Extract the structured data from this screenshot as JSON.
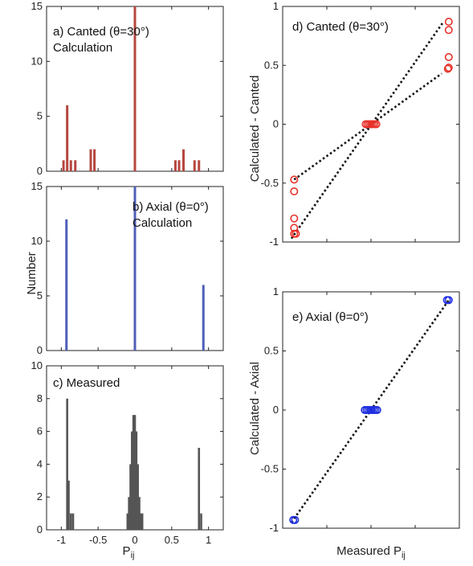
{
  "figure": {
    "y_label_left": "Number",
    "x_label_left": "P",
    "x_label_left_sub": "ij",
    "y_label_right_top": "Calculated - Canted",
    "y_label_right_bottom": "Calculated - Axial",
    "x_label_right": "Measured P",
    "x_label_right_sub": "ij"
  },
  "chart_data": [
    {
      "id": "a",
      "type": "bar",
      "annotation_lines": [
        "a) Canted (θ=30°)",
        "Calculation"
      ],
      "xlim": [
        -1.2,
        1.2
      ],
      "ylim": [
        0,
        15
      ],
      "xticks": [
        -1,
        -0.5,
        0,
        0.5,
        1
      ],
      "yticks": [
        0,
        5,
        10,
        15
      ],
      "show_xtick_labels": false,
      "bar_color": "#b5473f",
      "x": [
        -0.97,
        -0.92,
        -0.87,
        -0.81,
        -0.6,
        -0.55,
        0.0,
        0.55,
        0.6,
        0.66,
        0.81,
        0.87
      ],
      "values": [
        1,
        6,
        1,
        1,
        2,
        2,
        15,
        1,
        1,
        2,
        1,
        1
      ]
    },
    {
      "id": "b",
      "type": "bar",
      "annotation_lines": [
        "b) Axial (θ=0°)",
        "Calculation"
      ],
      "xlim": [
        -1.2,
        1.2
      ],
      "ylim": [
        0,
        15
      ],
      "xticks": [
        -1,
        -0.5,
        0,
        0.5,
        1
      ],
      "yticks": [
        0,
        5,
        10,
        15
      ],
      "show_xtick_labels": false,
      "bar_color": "#4f5fb8",
      "x": [
        -0.93,
        0.0,
        0.93
      ],
      "values": [
        12,
        15,
        6
      ]
    },
    {
      "id": "c",
      "type": "bar",
      "annotation_lines": [
        "c) Measured"
      ],
      "xlim": [
        -1.2,
        1.2
      ],
      "ylim": [
        0,
        10
      ],
      "xticks": [
        -1,
        -0.5,
        0,
        0.5,
        1
      ],
      "xtick_labels": [
        "-1",
        "-0.5",
        "0",
        "0.5",
        "1"
      ],
      "yticks": [
        0,
        2,
        4,
        6,
        8,
        10
      ],
      "show_xtick_labels": true,
      "bar_color": "#555555",
      "x": [
        -0.92,
        -0.9,
        -0.87,
        -0.84,
        -0.1,
        -0.08,
        -0.06,
        -0.04,
        -0.02,
        0.0,
        0.02,
        0.04,
        0.06,
        0.08,
        0.1,
        0.87,
        0.9
      ],
      "values": [
        8,
        3,
        1,
        1,
        1,
        2,
        4,
        6,
        7,
        7,
        6,
        4,
        2,
        1,
        1,
        5,
        1
      ]
    },
    {
      "id": "d",
      "type": "scatter",
      "annotation_lines": [
        "d) Canted (θ=30°)"
      ],
      "xlim": [
        -1,
        1
      ],
      "ylim": [
        -1,
        1
      ],
      "xticks": [
        -1,
        -0.5,
        0,
        0.5,
        1
      ],
      "xtick_labels": [
        "-1",
        "-0.5",
        "0",
        "0.5",
        "1"
      ],
      "yticks": [
        -1,
        -0.5,
        0,
        0.5,
        1
      ],
      "ytick_labels": [
        "-1",
        "-0.5",
        "0",
        "0.5",
        "1"
      ],
      "marker_color": "#e8322b",
      "points": [
        [
          -0.87,
          -0.47
        ],
        [
          -0.87,
          -0.57
        ],
        [
          -0.87,
          -0.8
        ],
        [
          -0.87,
          -0.88
        ],
        [
          -0.87,
          -0.93
        ],
        [
          -0.85,
          -0.93
        ],
        [
          -0.06,
          0
        ],
        [
          -0.04,
          0
        ],
        [
          -0.02,
          0
        ],
        [
          0.0,
          0
        ],
        [
          0.02,
          0
        ],
        [
          0.04,
          0
        ],
        [
          0.06,
          0
        ],
        [
          0.87,
          0.47
        ],
        [
          0.88,
          0.48
        ],
        [
          0.88,
          0.57
        ],
        [
          0.88,
          0.8
        ],
        [
          0.88,
          0.87
        ]
      ],
      "fit_lines": [
        {
          "x": [
            -0.87,
            0.8
          ],
          "y": [
            -0.47,
            0.43
          ]
        },
        {
          "x": [
            -0.9,
            0.82
          ],
          "y": [
            -0.97,
            0.87
          ]
        }
      ]
    },
    {
      "id": "e",
      "type": "scatter",
      "annotation_lines": [
        "e) Axial (θ=0°)"
      ],
      "xlim": [
        -1,
        1
      ],
      "ylim": [
        -1,
        1
      ],
      "xticks": [
        -1,
        -0.5,
        0,
        0.5,
        1
      ],
      "xtick_labels": [
        "-1",
        "-0.5",
        "0",
        "0.5",
        "1"
      ],
      "yticks": [
        -1,
        -0.5,
        0,
        0.5,
        1
      ],
      "ytick_labels": [
        "-1",
        "-0.5",
        "0",
        "0.5",
        "1"
      ],
      "marker_color": "#1f2ee0",
      "points": [
        [
          -0.88,
          -0.93
        ],
        [
          -0.86,
          -0.93
        ],
        [
          -0.07,
          0
        ],
        [
          -0.05,
          0
        ],
        [
          -0.03,
          0
        ],
        [
          -0.01,
          0
        ],
        [
          0.01,
          0
        ],
        [
          0.03,
          0
        ],
        [
          0.05,
          0
        ],
        [
          0.07,
          0
        ],
        [
          0.86,
          0.93
        ],
        [
          0.88,
          0.93
        ]
      ],
      "fit_lines": [
        {
          "x": [
            -0.9,
            0.88
          ],
          "y": [
            -0.95,
            0.93
          ]
        }
      ]
    }
  ]
}
